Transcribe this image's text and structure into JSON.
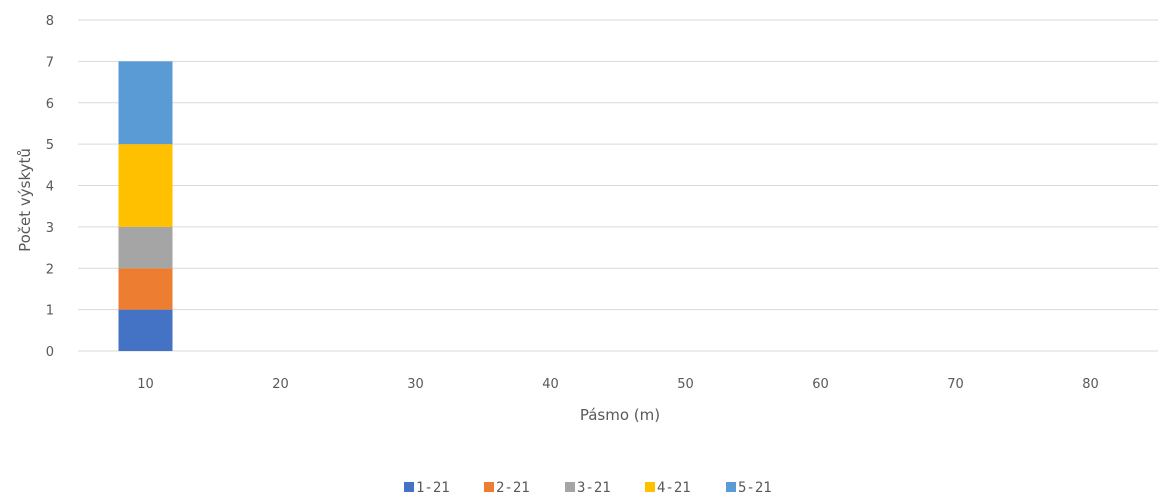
{
  "chart_data": {
    "type": "bar",
    "stacked": true,
    "categories": [
      "10",
      "20",
      "30",
      "40",
      "50",
      "60",
      "70",
      "80"
    ],
    "series": [
      {
        "name": "1-21",
        "color": "#4472C4",
        "values": [
          1,
          0,
          0,
          0,
          0,
          0,
          0,
          0
        ]
      },
      {
        "name": "2-21",
        "color": "#ED7D31",
        "values": [
          1,
          0,
          0,
          0,
          0,
          0,
          0,
          0
        ]
      },
      {
        "name": "3-21",
        "color": "#A5A5A5",
        "values": [
          1,
          0,
          0,
          0,
          0,
          0,
          0,
          0
        ]
      },
      {
        "name": "4-21",
        "color": "#FFC000",
        "values": [
          2,
          0,
          0,
          0,
          0,
          0,
          0,
          0
        ]
      },
      {
        "name": "5-21",
        "color": "#5B9BD5",
        "values": [
          2,
          0,
          0,
          0,
          0,
          0,
          0,
          0
        ]
      }
    ],
    "xlabel": "Pásmo (m)",
    "ylabel": "Počet výskytů",
    "ylim": [
      0,
      8
    ],
    "yticks": [
      0,
      1,
      2,
      3,
      4,
      5,
      6,
      7,
      8
    ],
    "grid": true,
    "legend_position": "bottom"
  }
}
